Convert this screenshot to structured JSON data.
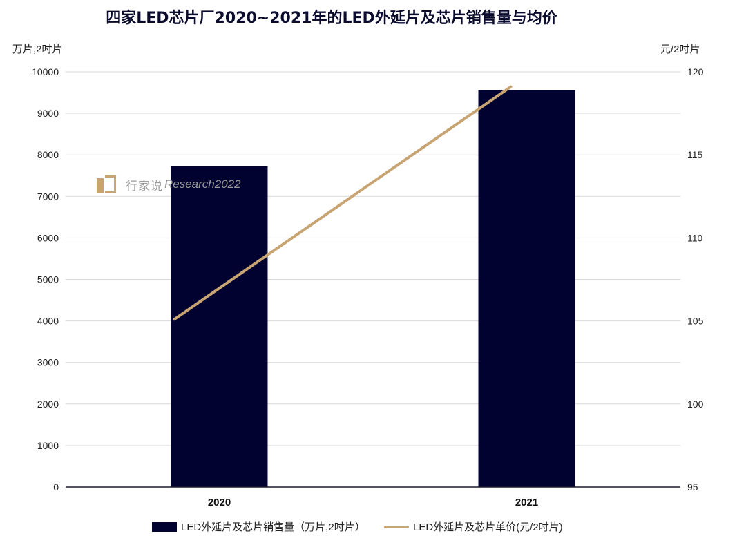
{
  "chart_data": {
    "type": "bar+line",
    "title": "四家LED芯片厂2020~2021年的LED外延片及芯片销售量与均价",
    "y_left_label": "万片,2吋片",
    "y_right_label": "元/2吋片",
    "categories": [
      "2020",
      "2021"
    ],
    "ylim_left": [
      0,
      10000
    ],
    "ylim_right": [
      95,
      120
    ],
    "yticks_left": [
      0,
      1000,
      2000,
      3000,
      4000,
      5000,
      6000,
      7000,
      8000,
      9000,
      10000
    ],
    "yticks_right": [
      95,
      100,
      105,
      110,
      115,
      120
    ],
    "grid": true,
    "legend_position": "bottom",
    "series": [
      {
        "name": "LED外延片及芯片销售量（万片,2吋片）",
        "type": "bar",
        "axis": "left",
        "color": "#020230",
        "values": [
          7730,
          9560
        ]
      },
      {
        "name": "LED外延片及芯片单价(元/2吋片)",
        "type": "line",
        "axis": "right",
        "color": "#c8a472",
        "values": [
          105.1,
          119.1
        ]
      }
    ]
  },
  "watermark": {
    "brand": "行家说",
    "suffix": "Research2022"
  }
}
